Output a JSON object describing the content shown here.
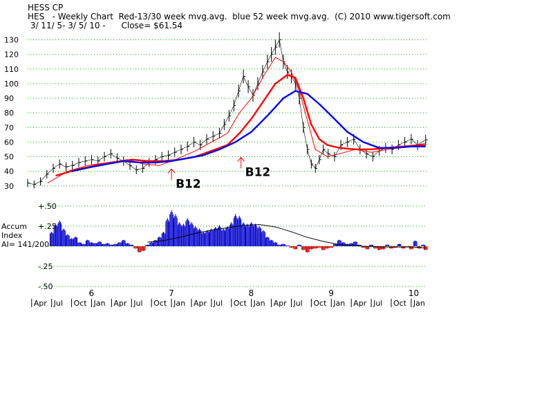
{
  "header": {
    "title": "HESS CP",
    "subtitle": "HES   - Weekly Chart  Red-13/30 week mvg.avg.  blue 52 week mvg.avg.  (C) 2010 www.tigersoft.com",
    "range": " 3/ 11/ 5- 3/ 5/ 10 -      Close= $61.54"
  },
  "colors": {
    "ma_13": "#ff0000",
    "ma_30": "#ff0000",
    "ma_52": "#0000ff",
    "accum_positive": "#0000cc",
    "accum_negative": "#cc0000",
    "annotation_arrow": "#ff0000",
    "grid": "#00aa00"
  },
  "chart_data": [
    {
      "type": "line",
      "name": "price",
      "yticks": [
        30,
        40,
        50,
        60,
        70,
        80,
        90,
        100,
        110,
        120,
        130
      ],
      "ylim": [
        28,
        135
      ],
      "xlim": [
        2005.2,
        2010.2
      ],
      "grid": "horizontal dotted",
      "weekly_close": {
        "x": [
          2005.2,
          2005.28,
          2005.36,
          2005.44,
          2005.52,
          2005.6,
          2005.68,
          2005.76,
          2005.84,
          2005.92,
          2006.0,
          2006.08,
          2006.16,
          2006.24,
          2006.32,
          2006.4,
          2006.48,
          2006.56,
          2006.64,
          2006.72,
          2006.8,
          2006.88,
          2006.96,
          2007.04,
          2007.12,
          2007.2,
          2007.28,
          2007.36,
          2007.44,
          2007.52,
          2007.6,
          2007.66,
          2007.72,
          2007.78,
          2007.84,
          2007.9,
          2007.96,
          2008.02,
          2008.08,
          2008.14,
          2008.2,
          2008.25,
          2008.3,
          2008.35,
          2008.4,
          2008.45,
          2008.5,
          2008.55,
          2008.6,
          2008.65,
          2008.7,
          2008.75,
          2008.8,
          2008.85,
          2008.9,
          2008.96,
          2009.04,
          2009.12,
          2009.2,
          2009.28,
          2009.36,
          2009.44,
          2009.52,
          2009.6,
          2009.68,
          2009.76,
          2009.84,
          2009.92,
          2010.0,
          2010.08,
          2010.18
        ],
        "y": [
          32,
          31,
          33,
          38,
          42,
          45,
          43,
          44,
          46,
          47,
          48,
          47,
          50,
          52,
          49,
          47,
          44,
          41,
          42,
          46,
          48,
          50,
          51,
          53,
          55,
          57,
          60,
          58,
          62,
          64,
          66,
          72,
          78,
          85,
          95,
          105,
          98,
          92,
          100,
          108,
          115,
          120,
          125,
          130,
          115,
          108,
          105,
          100,
          90,
          70,
          55,
          45,
          42,
          48,
          55,
          52,
          50,
          58,
          60,
          62,
          55,
          52,
          50,
          54,
          56,
          55,
          58,
          60,
          62,
          58,
          61.54
        ]
      },
      "moving_averages": [
        {
          "label": "13 week",
          "x": [
            2005.45,
            2005.7,
            2005.95,
            2006.2,
            2006.45,
            2006.65,
            2006.85,
            2007.05,
            2007.3,
            2007.5,
            2007.7,
            2007.85,
            2008.0,
            2008.15,
            2008.3,
            2008.4,
            2008.5,
            2008.6,
            2008.7,
            2008.8,
            2008.95,
            2009.1,
            2009.3,
            2009.5,
            2009.7,
            2009.9,
            2010.18
          ],
          "y": [
            32,
            40,
            44,
            46,
            48,
            45,
            44,
            48,
            54,
            60,
            66,
            80,
            90,
            105,
            118,
            115,
            108,
            95,
            75,
            55,
            50,
            52,
            55,
            53,
            55,
            57,
            59
          ]
        },
        {
          "label": "30 week",
          "x": [
            2005.55,
            2005.8,
            2006.05,
            2006.3,
            2006.5,
            2006.7,
            2006.9,
            2007.1,
            2007.3,
            2007.5,
            2007.7,
            2007.85,
            2008.0,
            2008.15,
            2008.3,
            2008.45,
            2008.55,
            2008.65,
            2008.75,
            2008.85,
            2008.95,
            2009.1,
            2009.3,
            2009.5,
            2009.7,
            2009.9,
            2010.18
          ],
          "y": [
            37,
            41,
            44,
            46,
            48,
            47,
            47,
            48,
            50,
            54,
            58,
            66,
            76,
            88,
            100,
            106,
            104,
            90,
            72,
            62,
            58,
            56,
            55,
            55,
            56,
            57,
            58
          ]
        },
        {
          "label": "52 week",
          "x": [
            2005.75,
            2006.0,
            2006.2,
            2006.4,
            2006.6,
            2006.8,
            2007.0,
            2007.2,
            2007.4,
            2007.6,
            2007.8,
            2008.0,
            2008.2,
            2008.4,
            2008.55,
            2008.7,
            2008.85,
            2009.0,
            2009.2,
            2009.4,
            2009.6,
            2009.8,
            2010.0,
            2010.18
          ],
          "y": [
            40,
            43,
            45,
            47,
            46,
            46,
            47,
            49,
            51,
            55,
            60,
            67,
            78,
            90,
            95,
            93,
            86,
            78,
            67,
            60,
            56,
            56,
            57,
            57
          ]
        }
      ],
      "annotations": [
        {
          "text": "B12",
          "x": 2007.0,
          "y": 34
        },
        {
          "text": "B12",
          "x": 2007.87,
          "y": 42
        }
      ]
    },
    {
      "type": "bar",
      "name": "Accum Index",
      "label_lines": [
        "Accum",
        "Index",
        "AI= 141/200"
      ],
      "yticks": [
        0.5,
        0.25,
        0.0,
        -0.25,
        -0.5
      ],
      "ytick_labels": [
        "+.50",
        "+.25",
        "",
        "-.25",
        "-.50"
      ],
      "ylim": [
        -0.55,
        0.55
      ],
      "x": [
        2005.5,
        2005.55,
        2005.6,
        2005.65,
        2005.7,
        2005.75,
        2005.8,
        2005.85,
        2005.9,
        2005.95,
        2006.0,
        2006.05,
        2006.1,
        2006.15,
        2006.2,
        2006.25,
        2006.3,
        2006.35,
        2006.4,
        2006.45,
        2006.5,
        2006.55,
        2006.6,
        2006.65,
        2006.7,
        2006.75,
        2006.8,
        2006.85,
        2006.9,
        2006.95,
        2007.0,
        2007.05,
        2007.1,
        2007.15,
        2007.2,
        2007.25,
        2007.3,
        2007.35,
        2007.4,
        2007.45,
        2007.5,
        2007.55,
        2007.6,
        2007.65,
        2007.7,
        2007.75,
        2007.8,
        2007.85,
        2007.9,
        2007.95,
        2008.0,
        2008.05,
        2008.1,
        2008.15,
        2008.2,
        2008.25,
        2008.3,
        2008.35,
        2008.4,
        2008.45,
        2008.5,
        2008.55,
        2008.6,
        2008.65,
        2008.7,
        2008.75,
        2008.8,
        2008.85,
        2008.9,
        2008.95,
        2009.0,
        2009.05,
        2009.1,
        2009.15,
        2009.2,
        2009.25,
        2009.3,
        2009.35,
        2009.4,
        2009.45,
        2009.5,
        2009.55,
        2009.6,
        2009.65,
        2009.7,
        2009.75,
        2009.8,
        2009.85,
        2009.9,
        2009.95,
        2010.0,
        2010.05,
        2010.1,
        2010.15,
        2010.18
      ],
      "values": [
        0.18,
        0.28,
        0.32,
        0.22,
        0.15,
        0.1,
        0.12,
        0.05,
        0.03,
        0.08,
        0.05,
        0.04,
        0.06,
        0.03,
        0.04,
        0.02,
        0.03,
        0.05,
        0.08,
        0.04,
        0.02,
        -0.03,
        -0.08,
        -0.06,
        0.02,
        0.05,
        0.08,
        0.12,
        0.18,
        0.35,
        0.45,
        0.4,
        0.3,
        0.28,
        0.35,
        0.3,
        0.25,
        0.22,
        0.18,
        0.2,
        0.22,
        0.24,
        0.26,
        0.22,
        0.25,
        0.3,
        0.4,
        0.38,
        0.3,
        0.28,
        0.3,
        0.28,
        0.25,
        0.2,
        0.12,
        0.08,
        0.05,
        0.02,
        0.03,
        0.01,
        -0.02,
        -0.04,
        0.02,
        -0.05,
        -0.08,
        -0.04,
        -0.03,
        -0.02,
        -0.05,
        -0.03,
        -0.02,
        0.03,
        0.08,
        0.05,
        0.03,
        0.04,
        0.06,
        0.02,
        -0.02,
        -0.04,
        0.02,
        -0.03,
        -0.05,
        -0.04,
        0.02,
        -0.03,
        -0.02,
        0.03,
        -0.03,
        -0.01,
        -0.04,
        0.07,
        -0.03,
        0.02,
        -0.05
      ],
      "signal_line": {
        "x": [
          2006.7,
          2006.9,
          2007.1,
          2007.3,
          2007.5,
          2007.7,
          2007.9,
          2008.1,
          2008.3,
          2008.5,
          2008.7,
          2008.9,
          2009.1,
          2009.4,
          2009.7,
          2010.0,
          2010.18
        ],
        "y": [
          0.05,
          0.07,
          0.11,
          0.16,
          0.2,
          0.23,
          0.26,
          0.27,
          0.24,
          0.18,
          0.11,
          0.06,
          0.02,
          0.0,
          -0.01,
          -0.01,
          -0.02
        ]
      }
    }
  ],
  "x_axis": {
    "year_labels": [
      {
        "label": "6",
        "x": 2006.0
      },
      {
        "label": "7",
        "x": 2007.0
      },
      {
        "label": "8",
        "x": 2008.0
      },
      {
        "label": "9",
        "x": 2009.0
      },
      {
        "label": "10",
        "x": 2010.0
      }
    ],
    "month_labels": [
      {
        "label": "Apr",
        "x": 2005.25
      },
      {
        "label": "Jul",
        "x": 2005.5
      },
      {
        "label": "Oct",
        "x": 2005.75
      },
      {
        "label": "Jan",
        "x": 2006.0
      },
      {
        "label": "Apr",
        "x": 2006.25
      },
      {
        "label": "Jul",
        "x": 2006.5
      },
      {
        "label": "Oct",
        "x": 2006.75
      },
      {
        "label": "Jan",
        "x": 2007.0
      },
      {
        "label": "Apr",
        "x": 2007.25
      },
      {
        "label": "Jul",
        "x": 2007.5
      },
      {
        "label": "Oct",
        "x": 2007.75
      },
      {
        "label": "Jan",
        "x": 2008.0
      },
      {
        "label": "Apr",
        "x": 2008.25
      },
      {
        "label": "Jul",
        "x": 2008.5
      },
      {
        "label": "Oct",
        "x": 2008.75
      },
      {
        "label": "Jan",
        "x": 2009.0
      },
      {
        "label": "Apr",
        "x": 2009.25
      },
      {
        "label": "Jul",
        "x": 2009.5
      },
      {
        "label": "Oct",
        "x": 2009.75
      },
      {
        "label": "Jan",
        "x": 2010.0
      }
    ]
  }
}
